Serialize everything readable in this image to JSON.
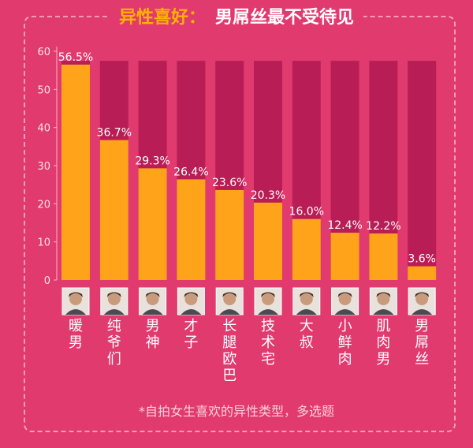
{
  "title_part1": "异性喜好：",
  "title_part2": "男屌丝最不受待见",
  "footnote": "*自拍女生喜欢的异性类型，多选题",
  "colors": {
    "background": "#e03a6f",
    "bar": "#ffa31a",
    "track": "#b81e55",
    "title_accent": "#ffb300"
  },
  "chart_data": {
    "type": "bar",
    "categories": [
      "暖男",
      "纯爷们",
      "男神",
      "才子",
      "长腿欧巴",
      "技术宅",
      "大叔",
      "小鲜肉",
      "肌肉男",
      "男屌丝"
    ],
    "values": [
      56.5,
      36.7,
      29.3,
      26.4,
      23.6,
      20.3,
      16.0,
      12.4,
      12.2,
      3.6
    ],
    "value_labels": [
      "56.5%",
      "36.7%",
      "29.3%",
      "26.4%",
      "23.6%",
      "20.3%",
      "16.0%",
      "12.4%",
      "12.2%",
      "3.6%"
    ],
    "yticks": [
      0,
      10,
      20,
      30,
      40,
      50,
      60
    ],
    "ylim": [
      0,
      60
    ],
    "track_max": 57.5
  }
}
